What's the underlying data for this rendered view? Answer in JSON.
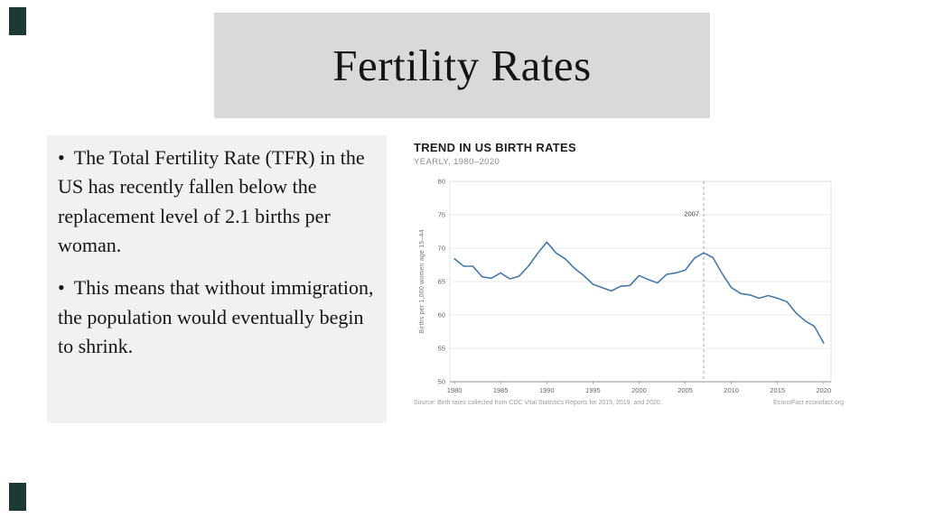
{
  "slide": {
    "title": "Fertility Rates",
    "bullet_char": "•",
    "bullets": [
      "The Total Fertility Rate (TFR) in the US has recently fallen below the replacement level of 2.1 births per woman.",
      "This means that without immigration, the population would eventually begin to shrink."
    ]
  },
  "chart": {
    "title": "TREND IN US BIRTH RATES",
    "subtitle": "YEARLY, 1980–2020",
    "source_left": "Source: Birth rates collected from CDC Vital Statistics Reports for 2015, 2019, and 2020.",
    "source_right": "EconoFact  econofact.org"
  },
  "chart_data": {
    "type": "line",
    "title": "TREND IN US BIRTH RATES",
    "subtitle": "YEARLY, 1980–2020",
    "xlabel": "",
    "ylabel": "Births per 1,000 women age 15–44",
    "x": [
      1980,
      1981,
      1982,
      1983,
      1984,
      1985,
      1986,
      1987,
      1988,
      1989,
      1990,
      1991,
      1992,
      1993,
      1994,
      1995,
      1996,
      1997,
      1998,
      1999,
      2000,
      2001,
      2002,
      2003,
      2004,
      2005,
      2006,
      2007,
      2008,
      2009,
      2010,
      2011,
      2012,
      2013,
      2014,
      2015,
      2016,
      2017,
      2018,
      2019,
      2020
    ],
    "values": [
      68.4,
      67.3,
      67.3,
      65.7,
      65.5,
      66.3,
      65.4,
      65.8,
      67.3,
      69.2,
      70.9,
      69.3,
      68.4,
      67.0,
      65.9,
      64.6,
      64.1,
      63.6,
      64.3,
      64.4,
      65.9,
      65.3,
      64.8,
      66.1,
      66.3,
      66.7,
      68.5,
      69.3,
      68.6,
      66.2,
      64.1,
      63.2,
      63.0,
      62.5,
      62.9,
      62.5,
      62.0,
      60.3,
      59.1,
      58.3,
      55.8
    ],
    "xlim": [
      1979.5,
      2020.8
    ],
    "ylim": [
      50,
      80
    ],
    "yticks": [
      50,
      55,
      60,
      65,
      70,
      75,
      80
    ],
    "xticks": [
      1980,
      1985,
      1990,
      1995,
      2000,
      2005,
      2010,
      2015,
      2020
    ],
    "grid": true,
    "legend": false,
    "line_color": "#4878a8",
    "vline": {
      "x": 2007,
      "label": "2007",
      "style": "dashed"
    }
  },
  "colors": {
    "accent_bar": "#1c3a33",
    "title_bg": "#d9d9d9",
    "text_panel_bg": "#f1f1f1",
    "chart_line": "#4878a8"
  }
}
